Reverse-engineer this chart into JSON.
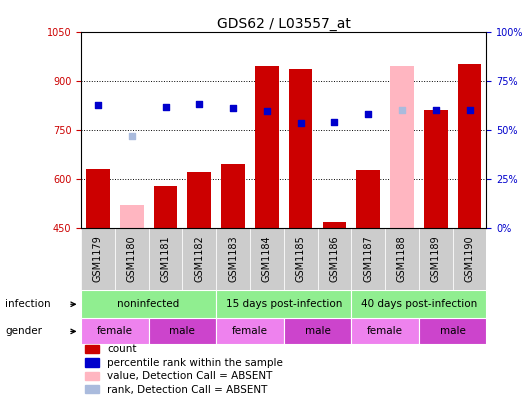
{
  "title": "GDS62 / L03557_at",
  "samples": [
    "GSM1179",
    "GSM1180",
    "GSM1181",
    "GSM1182",
    "GSM1183",
    "GSM1184",
    "GSM1185",
    "GSM1186",
    "GSM1187",
    "GSM1188",
    "GSM1189",
    "GSM1190"
  ],
  "count_values": [
    630,
    null,
    580,
    620,
    645,
    945,
    935,
    467,
    628,
    null,
    810,
    950
  ],
  "count_absent_values": [
    null,
    520,
    null,
    null,
    null,
    null,
    null,
    null,
    null,
    945,
    null,
    null
  ],
  "rank_values": [
    825,
    null,
    820,
    828,
    818,
    808,
    770,
    775,
    800,
    null,
    812,
    810
  ],
  "rank_absent_values": [
    null,
    732,
    null,
    null,
    null,
    null,
    null,
    null,
    null,
    810,
    null,
    null
  ],
  "ylim_left": [
    450,
    1050
  ],
  "yticks_left": [
    450,
    600,
    750,
    900,
    1050
  ],
  "yticks_right": [
    0,
    25,
    50,
    75,
    100
  ],
  "bar_color": "#CC0000",
  "bar_absent_color": "#FFB6C1",
  "rank_color": "#0000CC",
  "rank_absent_color": "#AABBDD",
  "bg_color": "#FFFFFF",
  "left_axis_color": "#CC0000",
  "right_axis_color": "#0000CC",
  "bar_width": 0.7,
  "infect_groups": [
    {
      "label": "noninfected",
      "start": 0,
      "end": 4
    },
    {
      "label": "15 days post-infection",
      "start": 4,
      "end": 8
    },
    {
      "label": "40 days post-infection",
      "start": 8,
      "end": 12
    }
  ],
  "infect_color": "#90EE90",
  "gender_groups": [
    {
      "label": "female",
      "start": 0,
      "end": 2,
      "color": "#EE82EE"
    },
    {
      "label": "male",
      "start": 2,
      "end": 4,
      "color": "#CC44CC"
    },
    {
      "label": "female",
      "start": 4,
      "end": 6,
      "color": "#EE82EE"
    },
    {
      "label": "male",
      "start": 6,
      "end": 8,
      "color": "#CC44CC"
    },
    {
      "label": "female",
      "start": 8,
      "end": 10,
      "color": "#EE82EE"
    },
    {
      "label": "male",
      "start": 10,
      "end": 12,
      "color": "#CC44CC"
    }
  ],
  "legend_items": [
    {
      "label": "count",
      "color": "#CC0000"
    },
    {
      "label": "percentile rank within the sample",
      "color": "#0000CC"
    },
    {
      "label": "value, Detection Call = ABSENT",
      "color": "#FFB6C1"
    },
    {
      "label": "rank, Detection Call = ABSENT",
      "color": "#AABBDD"
    }
  ],
  "sample_box_color": "#CCCCCC",
  "label_fontsize": 7.5,
  "tick_fontsize": 7,
  "title_fontsize": 10
}
